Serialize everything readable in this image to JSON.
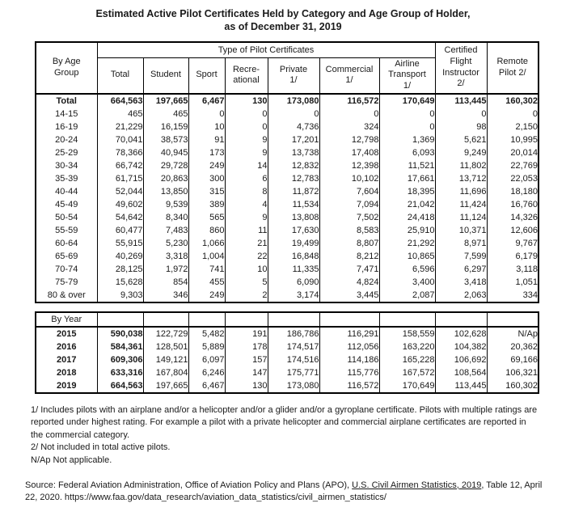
{
  "title": {
    "line1": "Estimated Active Pilot Certificates Held by Category and Age Group of Holder,",
    "line2": "as of December 31, 2019"
  },
  "age_table": {
    "corner_header": "By Age\nGroup",
    "group_header": "Type of Pilot Certificates",
    "sub_columns": [
      "Total",
      "Student",
      "Sport",
      "Recre-\national",
      "Private\n1/",
      "Commercial\n1/",
      "Airline\nTransport\n1/"
    ],
    "cfi_header": "Certified\nFlight\nInstructor\n2/",
    "remote_pilot_header": "Remote\nPilot 2/",
    "rows": [
      {
        "label": "Total",
        "bold": true,
        "values": [
          "664,563",
          "197,665",
          "6,467",
          "130",
          "173,080",
          "116,572",
          "170,649",
          "113,445",
          "160,302"
        ]
      },
      {
        "label": "14-15",
        "bold": false,
        "values": [
          "465",
          "465",
          "0",
          "0",
          "0",
          "0",
          "0",
          "0",
          "0"
        ]
      },
      {
        "label": "16-19",
        "bold": false,
        "values": [
          "21,229",
          "16,159",
          "10",
          "0",
          "4,736",
          "324",
          "0",
          "98",
          "2,150"
        ]
      },
      {
        "label": "20-24",
        "bold": false,
        "values": [
          "70,041",
          "38,573",
          "91",
          "9",
          "17,201",
          "12,798",
          "1,369",
          "5,621",
          "10,995"
        ]
      },
      {
        "label": "25-29",
        "bold": false,
        "values": [
          "78,366",
          "40,945",
          "173",
          "9",
          "13,738",
          "17,408",
          "6,093",
          "9,249",
          "20,014"
        ]
      },
      {
        "label": "30-34",
        "bold": false,
        "values": [
          "66,742",
          "29,728",
          "249",
          "14",
          "12,832",
          "12,398",
          "11,521",
          "11,802",
          "22,769"
        ]
      },
      {
        "label": "35-39",
        "bold": false,
        "values": [
          "61,715",
          "20,863",
          "300",
          "6",
          "12,783",
          "10,102",
          "17,661",
          "13,712",
          "22,053"
        ]
      },
      {
        "label": "40-44",
        "bold": false,
        "values": [
          "52,044",
          "13,850",
          "315",
          "8",
          "11,872",
          "7,604",
          "18,395",
          "11,696",
          "18,180"
        ]
      },
      {
        "label": "45-49",
        "bold": false,
        "values": [
          "49,602",
          "9,539",
          "389",
          "4",
          "11,534",
          "7,094",
          "21,042",
          "11,424",
          "16,760"
        ]
      },
      {
        "label": "50-54",
        "bold": false,
        "values": [
          "54,642",
          "8,340",
          "565",
          "9",
          "13,808",
          "7,502",
          "24,418",
          "11,124",
          "14,326"
        ]
      },
      {
        "label": "55-59",
        "bold": false,
        "values": [
          "60,477",
          "7,483",
          "860",
          "11",
          "17,630",
          "8,583",
          "25,910",
          "10,371",
          "12,606"
        ]
      },
      {
        "label": "60-64",
        "bold": false,
        "values": [
          "55,915",
          "5,230",
          "1,066",
          "21",
          "19,499",
          "8,807",
          "21,292",
          "8,971",
          "9,767"
        ]
      },
      {
        "label": "65-69",
        "bold": false,
        "values": [
          "40,269",
          "3,318",
          "1,004",
          "22",
          "16,848",
          "8,212",
          "10,865",
          "7,599",
          "6,179"
        ]
      },
      {
        "label": "70-74",
        "bold": false,
        "values": [
          "28,125",
          "1,972",
          "741",
          "10",
          "11,335",
          "7,471",
          "6,596",
          "6,297",
          "3,118"
        ]
      },
      {
        "label": "75-79",
        "bold": false,
        "values": [
          "15,628",
          "854",
          "455",
          "5",
          "6,090",
          "4,824",
          "3,400",
          "3,418",
          "1,051"
        ]
      },
      {
        "label": "80 & over",
        "bold": false,
        "values": [
          "9,303",
          "346",
          "249",
          "2",
          "3,174",
          "3,445",
          "2,087",
          "2,063",
          "334"
        ]
      }
    ]
  },
  "year_table": {
    "corner_header": "By Year",
    "rows": [
      {
        "label": "2015",
        "values": [
          "590,038",
          "122,729",
          "5,482",
          "191",
          "186,786",
          "116,291",
          "158,559",
          "102,628",
          "N/Ap"
        ]
      },
      {
        "label": "2016",
        "values": [
          "584,361",
          "128,501",
          "5,889",
          "178",
          "174,517",
          "112,056",
          "163,220",
          "104,382",
          "20,362"
        ]
      },
      {
        "label": "2017",
        "values": [
          "609,306",
          "149,121",
          "6,097",
          "157",
          "174,516",
          "114,186",
          "165,228",
          "106,692",
          "69,166"
        ]
      },
      {
        "label": "2018",
        "values": [
          "633,316",
          "167,804",
          "6,246",
          "147",
          "175,771",
          "115,776",
          "167,572",
          "108,564",
          "106,321"
        ]
      },
      {
        "label": "2019",
        "values": [
          "664,563",
          "197,665",
          "6,467",
          "130",
          "173,080",
          "116,572",
          "170,649",
          "113,445",
          "160,302"
        ]
      }
    ]
  },
  "footnotes": [
    "1/ Includes pilots with an airplane and/or a helicopter and/or a glider and/or a gyroplane certificate.  Pilots with multiple ratings are reported under highest rating.  For example a pilot with a private helicopter and commercial airplane certificates are reported in the commercial category.",
    "2/ Not included in total active pilots.",
    "N/Ap Not applicable."
  ],
  "source": {
    "prefix": "Source:  Federal Aviation Administration, Office of Aviation Policy and Plans (APO), ",
    "underlined": "U.S. Civil Airmen Statistics, 2019",
    "suffix": ", Table 12, April 22, 2020.  https://www.faa.gov/data_research/aviation_data_statistics/civil_airmen_statistics/"
  }
}
